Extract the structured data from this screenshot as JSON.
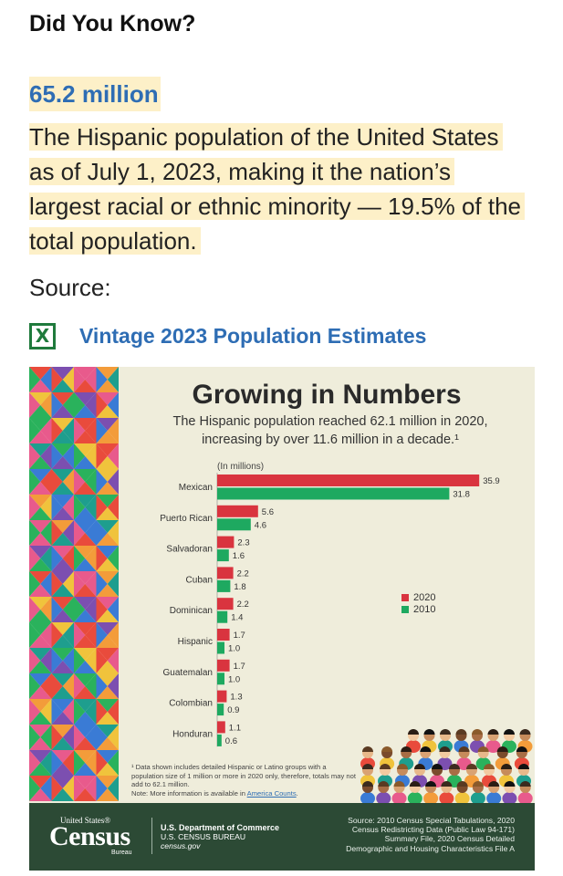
{
  "page": {
    "heading": "Did You Know?",
    "stat_value": "65.2 million",
    "stat_description": "The Hispanic population of the United States as of July 1, 2023, making it the nation’s largest racial or ethnic minority — 19.5% of the total population.",
    "source_label": "Source:",
    "source_link": "Vintage 2023 Population Estimates",
    "source_icon": "excel-file-icon"
  },
  "infographic": {
    "title": "Growing in Numbers",
    "subtitle": "The Hispanic population reached 62.1 million in 2020, increasing by over 11.6 million in a decade.¹",
    "footnote": "¹ Data shown includes detailed Hispanic or Latino groups with a population size of 1 million or more in 2020 only, therefore, totals may not add to 62.1 million.",
    "footnote_note": "Note: More information is available in",
    "footnote_link": "America Counts",
    "footer": {
      "logo_top": "United States®",
      "logo_main": "Census",
      "logo_bottom": "Bureau",
      "dept_line1": "U.S. Department of Commerce",
      "dept_line2": "U.S. CENSUS BUREAU",
      "dept_line3": "census.gov",
      "source_text": "Source: 2010 Census Special Tabulations, 2020 Census Redistricting Data (Public Law 94-171) Summary File, 2020 Census Detailed Demographic and Housing Characteristics File A"
    }
  },
  "chart_data": {
    "type": "bar",
    "orientation": "horizontal",
    "ylabel": "(In millions)",
    "categories": [
      "Mexican",
      "Puerto Rican",
      "Salvadoran",
      "Cuban",
      "Dominican",
      "Hispanic",
      "Guatemalan",
      "Colombian",
      "Honduran"
    ],
    "series": [
      {
        "name": "2020",
        "color": "#d9343f",
        "values": [
          35.9,
          5.6,
          2.3,
          2.2,
          2.2,
          1.7,
          1.7,
          1.3,
          1.1
        ]
      },
      {
        "name": "2010",
        "color": "#1ea960",
        "values": [
          31.8,
          4.6,
          1.6,
          1.8,
          1.4,
          1.0,
          1.0,
          0.9,
          0.6
        ]
      }
    ],
    "legend_position": "right",
    "grid": false
  }
}
